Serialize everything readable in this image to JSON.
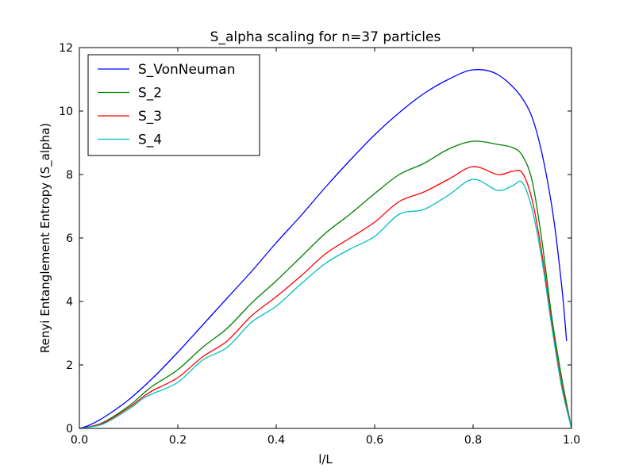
{
  "chart_data": {
    "type": "line",
    "title": "S_alpha scaling for n=37 particles",
    "xlabel": "l/L",
    "ylabel": "Renyi Entanglement Entropy (S_alpha)",
    "xlim": [
      0.0,
      1.0
    ],
    "ylim": [
      0,
      12
    ],
    "xticks": [
      "0.0",
      "0.2",
      "0.4",
      "0.6",
      "0.8",
      "1.0"
    ],
    "yticks": [
      "0",
      "2",
      "4",
      "6",
      "8",
      "10",
      "12"
    ],
    "grid": false,
    "legend_position": "top-left",
    "series": [
      {
        "name": "S_VonNeuman",
        "color": "#0000ff",
        "x": [
          0.0,
          0.02,
          0.05,
          0.1,
          0.15,
          0.2,
          0.25,
          0.3,
          0.35,
          0.4,
          0.45,
          0.5,
          0.55,
          0.6,
          0.65,
          0.7,
          0.75,
          0.8,
          0.85,
          0.9,
          0.93,
          0.96,
          0.98,
          0.99
        ],
        "y": [
          0.0,
          0.1,
          0.35,
          0.9,
          1.6,
          2.4,
          3.25,
          4.1,
          4.95,
          5.85,
          6.7,
          7.6,
          8.45,
          9.25,
          9.95,
          10.55,
          11.0,
          11.3,
          11.15,
          10.4,
          9.3,
          7.0,
          4.5,
          2.75
        ]
      },
      {
        "name": "S_2",
        "color": "#008000",
        "x": [
          0.0,
          0.02,
          0.05,
          0.1,
          0.13,
          0.15,
          0.2,
          0.25,
          0.3,
          0.35,
          0.4,
          0.45,
          0.5,
          0.55,
          0.6,
          0.65,
          0.7,
          0.75,
          0.8,
          0.85,
          0.88,
          0.9,
          0.92,
          0.94,
          0.96,
          0.98,
          1.0
        ],
        "y": [
          0.0,
          0.05,
          0.2,
          0.7,
          1.1,
          1.35,
          1.85,
          2.55,
          3.15,
          3.95,
          4.65,
          5.4,
          6.15,
          6.75,
          7.4,
          8.0,
          8.35,
          8.8,
          9.05,
          8.95,
          8.85,
          8.6,
          7.8,
          5.9,
          3.5,
          1.6,
          0.0
        ]
      },
      {
        "name": "S_3",
        "color": "#ff0000",
        "x": [
          0.0,
          0.02,
          0.05,
          0.1,
          0.13,
          0.15,
          0.2,
          0.25,
          0.3,
          0.35,
          0.4,
          0.45,
          0.5,
          0.55,
          0.6,
          0.65,
          0.7,
          0.75,
          0.8,
          0.85,
          0.88,
          0.9,
          0.92,
          0.94,
          0.96,
          0.98,
          1.0
        ],
        "y": [
          0.0,
          0.05,
          0.18,
          0.65,
          1.0,
          1.2,
          1.6,
          2.25,
          2.75,
          3.55,
          4.15,
          4.8,
          5.5,
          6.0,
          6.5,
          7.15,
          7.45,
          7.85,
          8.25,
          8.0,
          8.1,
          8.05,
          7.2,
          5.5,
          3.3,
          1.4,
          0.0
        ]
      },
      {
        "name": "S_4",
        "color": "#00bfbf",
        "x": [
          0.0,
          0.02,
          0.05,
          0.1,
          0.13,
          0.15,
          0.2,
          0.25,
          0.3,
          0.35,
          0.4,
          0.45,
          0.5,
          0.55,
          0.6,
          0.65,
          0.7,
          0.75,
          0.8,
          0.85,
          0.88,
          0.9,
          0.92,
          0.94,
          0.96,
          0.98,
          1.0
        ],
        "y": [
          0.0,
          0.04,
          0.15,
          0.6,
          0.95,
          1.1,
          1.45,
          2.15,
          2.55,
          3.35,
          3.85,
          4.55,
          5.2,
          5.65,
          6.05,
          6.75,
          6.9,
          7.35,
          7.85,
          7.5,
          7.65,
          7.75,
          6.9,
          5.3,
          3.2,
          1.3,
          0.0
        ]
      }
    ]
  }
}
